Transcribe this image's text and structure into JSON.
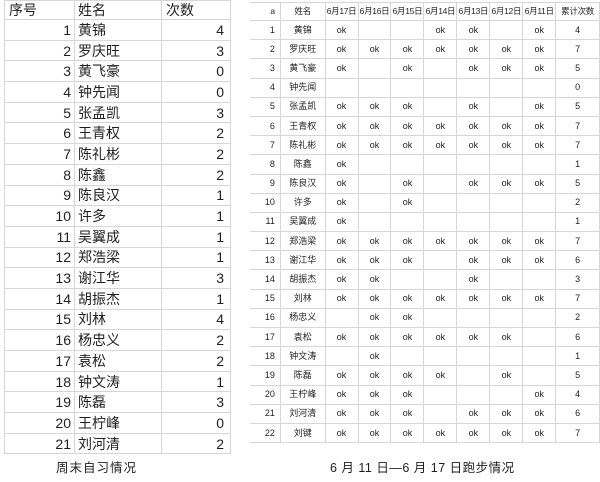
{
  "colors": {
    "gridline": "#d6d6d6",
    "text": "#1f1f1f",
    "background": "#ffffff"
  },
  "left_table": {
    "headers": [
      "序号",
      "姓名",
      "次数"
    ],
    "rows": [
      {
        "no": "1",
        "name": "黄锦",
        "count": "4"
      },
      {
        "no": "2",
        "name": "罗庆旺",
        "count": "3"
      },
      {
        "no": "3",
        "name": "黄飞豪",
        "count": "0"
      },
      {
        "no": "4",
        "name": "钟先闻",
        "count": "0"
      },
      {
        "no": "5",
        "name": "张孟凯",
        "count": "3"
      },
      {
        "no": "6",
        "name": "王青权",
        "count": "2"
      },
      {
        "no": "7",
        "name": "陈礼彬",
        "count": "2"
      },
      {
        "no": "8",
        "name": "陈鑫",
        "count": "2"
      },
      {
        "no": "9",
        "name": "陈良汉",
        "count": "1"
      },
      {
        "no": "10",
        "name": "许多",
        "count": "1"
      },
      {
        "no": "11",
        "name": "吴翼成",
        "count": "1"
      },
      {
        "no": "12",
        "name": "郑浩梁",
        "count": "1"
      },
      {
        "no": "13",
        "name": "谢江华",
        "count": "3"
      },
      {
        "no": "14",
        "name": "胡振杰",
        "count": "1"
      },
      {
        "no": "15",
        "name": "刘林",
        "count": "4"
      },
      {
        "no": "16",
        "name": "杨忠义",
        "count": "2"
      },
      {
        "no": "17",
        "name": "袁松",
        "count": "2"
      },
      {
        "no": "18",
        "name": "钟文涛",
        "count": "1"
      },
      {
        "no": "19",
        "name": "陈磊",
        "count": "3"
      },
      {
        "no": "20",
        "name": "王柠峰",
        "count": "0"
      },
      {
        "no": "21",
        "name": "刘河清",
        "count": "2"
      }
    ],
    "caption": "周末自习情况"
  },
  "right_table": {
    "headers": [
      "a",
      "姓名",
      "6月17日",
      "6月16日",
      "6月15日",
      "6月14日",
      "6月13日",
      "6月12日",
      "6月11日",
      "累计次数"
    ],
    "rows": [
      {
        "no": "1",
        "name": "黄锦",
        "marks": [
          "ok",
          "",
          "",
          "ok",
          "ok",
          "",
          "ok"
        ],
        "total": "4"
      },
      {
        "no": "2",
        "name": "罗庆旺",
        "marks": [
          "ok",
          "ok",
          "ok",
          "ok",
          "ok",
          "ok",
          "ok"
        ],
        "total": "7"
      },
      {
        "no": "3",
        "name": "黄飞豪",
        "marks": [
          "ok",
          "",
          "ok",
          "",
          "ok",
          "ok",
          "ok"
        ],
        "total": "5"
      },
      {
        "no": "4",
        "name": "钟先闻",
        "marks": [
          "",
          "",
          "",
          "",
          "",
          "",
          ""
        ],
        "total": "0"
      },
      {
        "no": "5",
        "name": "张孟凯",
        "marks": [
          "ok",
          "ok",
          "ok",
          "",
          "ok",
          "",
          "ok"
        ],
        "total": "5"
      },
      {
        "no": "6",
        "name": "王青权",
        "marks": [
          "ok",
          "ok",
          "ok",
          "ok",
          "ok",
          "ok",
          "ok"
        ],
        "total": "7"
      },
      {
        "no": "7",
        "name": "陈礼彬",
        "marks": [
          "ok",
          "ok",
          "ok",
          "ok",
          "ok",
          "ok",
          "ok"
        ],
        "total": "7"
      },
      {
        "no": "8",
        "name": "陈鑫",
        "marks": [
          "ok",
          "",
          "",
          "",
          "",
          "",
          ""
        ],
        "total": "1"
      },
      {
        "no": "9",
        "name": "陈良汉",
        "marks": [
          "ok",
          "",
          "ok",
          "",
          "ok",
          "ok",
          "ok"
        ],
        "total": "5"
      },
      {
        "no": "10",
        "name": "许多",
        "marks": [
          "ok",
          "",
          "ok",
          "",
          "",
          "",
          ""
        ],
        "total": "2"
      },
      {
        "no": "11",
        "name": "吴翼成",
        "marks": [
          "ok",
          "",
          "",
          "",
          "",
          "",
          ""
        ],
        "total": "1"
      },
      {
        "no": "12",
        "name": "郑浩梁",
        "marks": [
          "ok",
          "ok",
          "ok",
          "ok",
          "ok",
          "ok",
          "ok"
        ],
        "total": "7"
      },
      {
        "no": "13",
        "name": "谢江华",
        "marks": [
          "ok",
          "ok",
          "ok",
          "",
          "ok",
          "ok",
          "ok"
        ],
        "total": "6"
      },
      {
        "no": "14",
        "name": "胡振杰",
        "marks": [
          "ok",
          "ok",
          "",
          "",
          "ok",
          "",
          ""
        ],
        "total": "3"
      },
      {
        "no": "15",
        "name": "刘林",
        "marks": [
          "ok",
          "ok",
          "ok",
          "ok",
          "ok",
          "ok",
          "ok"
        ],
        "total": "7"
      },
      {
        "no": "16",
        "name": "杨忠义",
        "marks": [
          "",
          "ok",
          "ok",
          "",
          "",
          "",
          ""
        ],
        "total": "2"
      },
      {
        "no": "17",
        "name": "袁松",
        "marks": [
          "ok",
          "ok",
          "ok",
          "ok",
          "ok",
          "ok",
          ""
        ],
        "total": "6"
      },
      {
        "no": "18",
        "name": "钟文涛",
        "marks": [
          "",
          "ok",
          "",
          "",
          "",
          "",
          ""
        ],
        "total": "1"
      },
      {
        "no": "19",
        "name": "陈磊",
        "marks": [
          "ok",
          "ok",
          "ok",
          "ok",
          "",
          "ok",
          ""
        ],
        "total": "5"
      },
      {
        "no": "20",
        "name": "王柠峰",
        "marks": [
          "ok",
          "ok",
          "ok",
          "",
          "",
          "",
          "ok"
        ],
        "total": "4"
      },
      {
        "no": "21",
        "name": "刘河清",
        "marks": [
          "ok",
          "ok",
          "ok",
          "",
          "ok",
          "ok",
          "ok"
        ],
        "total": "6"
      },
      {
        "no": "22",
        "name": "刘键",
        "marks": [
          "ok",
          "ok",
          "ok",
          "ok",
          "ok",
          "ok",
          "ok"
        ],
        "total": "7"
      }
    ],
    "caption": "6 月 11 日—6 月 17 日跑步情况"
  }
}
